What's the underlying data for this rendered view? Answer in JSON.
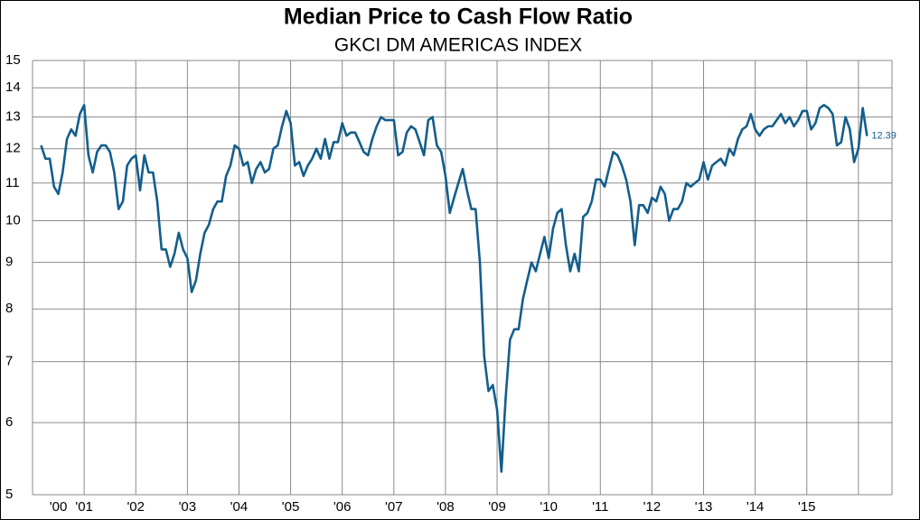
{
  "chart_data": {
    "type": "line",
    "title": "Median Price to Cash Flow Ratio",
    "subtitle": "GKCI DM AMERICAS INDEX",
    "log_scale": true,
    "grid": true,
    "color": "#135e8c",
    "ylim": [
      5,
      15
    ],
    "yticks": [
      5,
      6,
      7,
      8,
      9,
      10,
      11,
      12,
      13,
      14,
      15
    ],
    "categories": [
      null,
      null,
      null,
      null,
      "'00",
      null,
      null,
      null,
      null,
      null,
      "'01",
      null,
      null,
      null,
      null,
      null,
      null,
      null,
      null,
      null,
      null,
      null,
      "'02",
      null,
      null,
      null,
      null,
      null,
      null,
      null,
      null,
      null,
      null,
      null,
      "'03",
      null,
      null,
      null,
      null,
      null,
      null,
      null,
      null,
      null,
      null,
      null,
      "'04",
      null,
      null,
      null,
      null,
      null,
      null,
      null,
      null,
      null,
      null,
      null,
      "'05",
      null,
      null,
      null,
      null,
      null,
      null,
      null,
      null,
      null,
      null,
      null,
      "'06",
      null,
      null,
      null,
      null,
      null,
      null,
      null,
      null,
      null,
      null,
      null,
      "'07",
      null,
      null,
      null,
      null,
      null,
      null,
      null,
      null,
      null,
      null,
      null,
      "'08",
      null,
      null,
      null,
      null,
      null,
      null,
      null,
      null,
      null,
      null,
      null,
      "'09",
      null,
      null,
      null,
      null,
      null,
      null,
      null,
      null,
      null,
      null,
      null,
      "'10",
      null,
      null,
      null,
      null,
      null,
      null,
      null,
      null,
      null,
      null,
      null,
      "'11",
      null,
      null,
      null,
      null,
      null,
      null,
      null,
      null,
      null,
      null,
      null,
      "'12",
      null,
      null,
      null,
      null,
      null,
      null,
      null,
      null,
      null,
      null,
      null,
      "'13",
      null,
      null,
      null,
      null,
      null,
      null,
      null,
      null,
      null,
      null,
      null,
      "'14",
      null,
      null,
      null,
      null,
      null,
      null,
      null,
      null,
      null,
      null,
      null,
      "'15",
      null,
      null,
      null,
      null,
      null,
      null,
      null,
      null,
      null,
      null,
      null,
      null,
      null,
      null
    ],
    "values": [
      12.1,
      11.7,
      11.7,
      10.9,
      10.7,
      11.3,
      12.3,
      12.6,
      12.4,
      13.1,
      13.4,
      11.8,
      11.3,
      11.9,
      12.1,
      12.1,
      11.9,
      11.3,
      10.3,
      10.5,
      11.5,
      11.7,
      11.8,
      10.8,
      11.8,
      11.3,
      11.3,
      10.5,
      9.3,
      9.3,
      8.9,
      9.2,
      9.7,
      9.3,
      9.1,
      8.35,
      8.6,
      9.2,
      9.7,
      9.9,
      10.3,
      10.5,
      10.5,
      11.2,
      11.5,
      12.1,
      12.0,
      11.5,
      11.6,
      11.0,
      11.4,
      11.6,
      11.3,
      11.4,
      12.0,
      12.1,
      12.7,
      13.2,
      12.8,
      11.5,
      11.6,
      11.2,
      11.5,
      11.7,
      12.0,
      11.7,
      12.3,
      11.7,
      12.2,
      12.2,
      12.8,
      12.4,
      12.5,
      12.5,
      12.2,
      11.9,
      11.8,
      12.3,
      12.7,
      13.0,
      12.9,
      12.9,
      12.9,
      11.8,
      11.9,
      12.5,
      12.7,
      12.6,
      12.2,
      11.8,
      12.9,
      13.0,
      12.1,
      11.9,
      11.2,
      10.2,
      10.6,
      11.0,
      11.4,
      10.8,
      10.3,
      10.3,
      9.0,
      7.1,
      6.5,
      6.6,
      6.2,
      5.3,
      6.4,
      7.4,
      7.6,
      7.6,
      8.2,
      8.6,
      9.0,
      8.8,
      9.2,
      9.6,
      9.1,
      9.8,
      10.2,
      10.3,
      9.4,
      8.8,
      9.2,
      8.8,
      10.1,
      10.2,
      10.5,
      11.1,
      11.1,
      10.9,
      11.4,
      11.9,
      11.8,
      11.5,
      11.1,
      10.5,
      9.4,
      10.4,
      10.4,
      10.2,
      10.6,
      10.5,
      10.9,
      10.7,
      10.0,
      10.3,
      10.3,
      10.5,
      11.0,
      10.9,
      11.0,
      11.1,
      11.6,
      11.1,
      11.5,
      11.6,
      11.7,
      11.5,
      12.0,
      11.8,
      12.3,
      12.6,
      12.7,
      13.1,
      12.6,
      12.4,
      12.6,
      12.7,
      12.7,
      12.9,
      13.1,
      12.8,
      13.0,
      12.7,
      12.9,
      13.2,
      13.2,
      12.6,
      12.8,
      13.3,
      13.4,
      13.3,
      13.1,
      12.1,
      12.2,
      13.0,
      12.6,
      11.6,
      12.0,
      13.3,
      12.39
    ]
  }
}
